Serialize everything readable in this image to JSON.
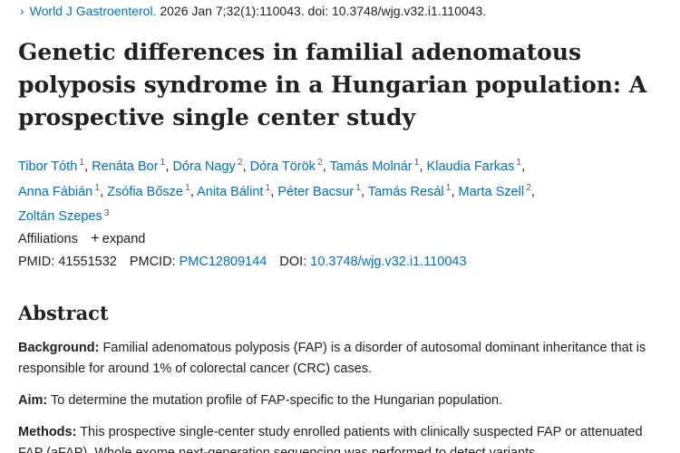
{
  "citation": {
    "journal": "World J Gastroenterol.",
    "details": " 2026 Jan 7;32(1):110043. doi: 10.3748/wjg.v32.i1.110043."
  },
  "title": "Genetic differences in familial adenomatous polyposis syndrome in a Hungarian population: A prospective single center study",
  "authors": [
    {
      "name": "Tibor Tóth",
      "aff": "1"
    },
    {
      "name": "Renáta Bor",
      "aff": "1"
    },
    {
      "name": "Dóra Nagy",
      "aff": "2"
    },
    {
      "name": "Dóra Török",
      "aff": "2"
    },
    {
      "name": "Tamás Molnár",
      "aff": "1"
    },
    {
      "name": "Klaudia Farkas",
      "aff": "1"
    },
    {
      "name": "Anna Fábián",
      "aff": "1"
    },
    {
      "name": "Zsófia Bősze",
      "aff": "1"
    },
    {
      "name": "Anita Bálint",
      "aff": "1"
    },
    {
      "name": "Péter Bacsur",
      "aff": "1"
    },
    {
      "name": "Tamás Resál",
      "aff": "1"
    },
    {
      "name": "Marta Szell",
      "aff": "2"
    },
    {
      "name": "Zoltán Szepes",
      "aff": "3"
    }
  ],
  "affiliations": {
    "label": "Affiliations",
    "expand": "expand"
  },
  "ids": {
    "pmid_label": "PMID:",
    "pmid": "41551532",
    "pmcid_label": "PMCID:",
    "pmcid": "PMC12809144",
    "doi_label": "DOI:",
    "doi": "10.3748/wjg.v32.i1.110043"
  },
  "abstract": {
    "heading": "Abstract",
    "background_label": "Background:",
    "background_text": " Familial adenomatous polyposis (FAP) is a disorder of autosomal dominant inheritance that is responsible for around 1% of colorectal cancer (CRC) cases.",
    "aim_label": "Aim:",
    "aim_text": " To determine the mutation profile of FAP-specific to the Hungarian population.",
    "methods_label": "Methods:",
    "methods_text": " This prospective single-center study enrolled patients with clinically suspected FAP or attenuated FAP (aFAP). Whole exome next-generation sequencing was performed to detect variants"
  }
}
